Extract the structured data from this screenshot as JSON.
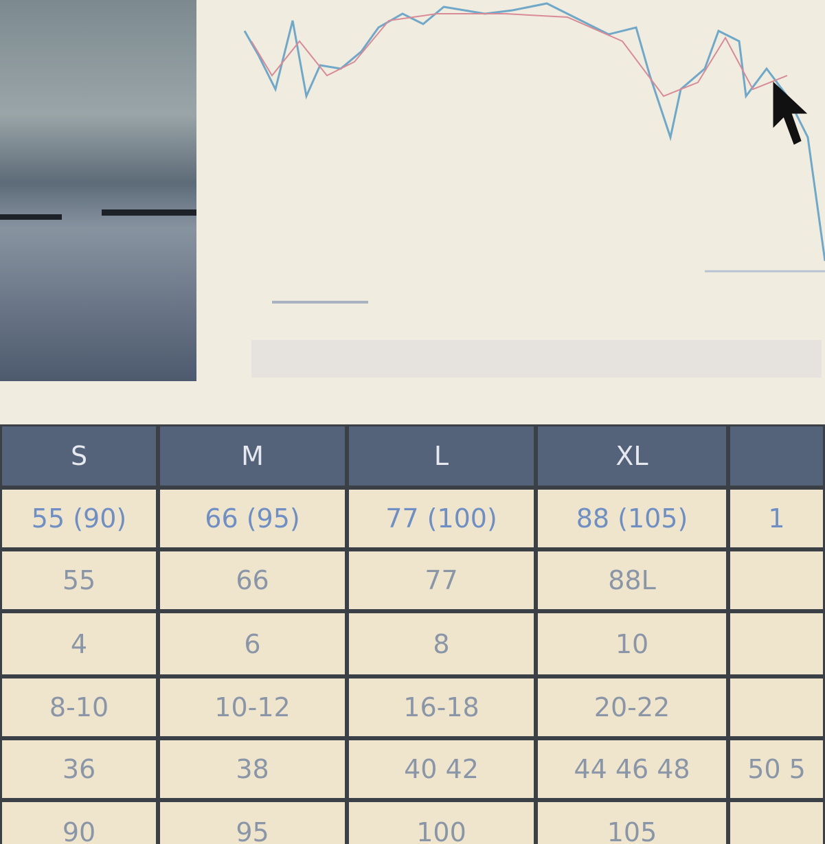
{
  "table": {
    "header": [
      "S",
      "M",
      "L",
      "XL"
    ],
    "rows": [
      [
        "55 (90)",
        "66 (95)",
        "77 (100)",
        "88 (105)",
        "1"
      ],
      [
        "55",
        "66",
        "77",
        "88L"
      ],
      [
        "4",
        "6",
        "8",
        "10"
      ],
      [
        "8-10",
        "10-12",
        "16-18",
        "20-22"
      ],
      [
        "36",
        "38",
        "40 42",
        "44 46 48",
        "50 5"
      ],
      [
        "90",
        "95",
        "100",
        "105"
      ]
    ]
  }
}
